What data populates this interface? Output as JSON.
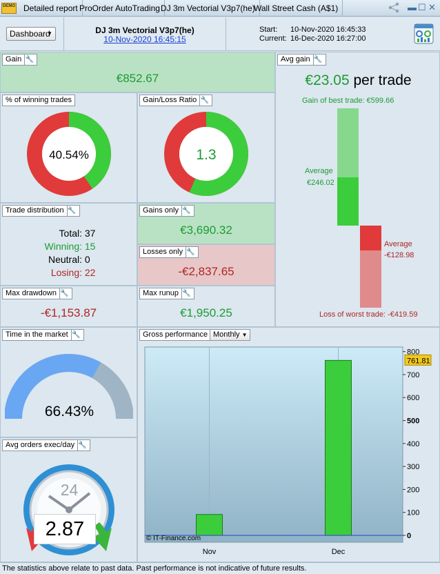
{
  "titlebar": {
    "logo_text": "DEMO",
    "tabs": [
      "Detailed report",
      "ProOrder AutoTrading",
      "DJ 3m Vectorial V3p7(he)",
      "Wall Street Cash (A$1)"
    ]
  },
  "header": {
    "dashboard_label": "Dashboard",
    "strategy_name": "DJ 3m Vectorial V3p7(he)",
    "strategy_date": "10-Nov-2020 16:45:15",
    "start_label": "Start:",
    "start_value": "10-Nov-2020 16:45:33",
    "current_label": "Current:",
    "current_value": "16-Dec-2020 16:27:00"
  },
  "gain": {
    "title": "Gain",
    "value": "€852.67"
  },
  "winning": {
    "title": "% of winning trades",
    "value": "40.54%",
    "fraction": 0.4054
  },
  "gainloss": {
    "title": "Gain/Loss Ratio",
    "value": "1.3",
    "fraction": 0.565
  },
  "avg_gain": {
    "title": "Avg gain",
    "value": "€23.05",
    "suffix": "per trade",
    "best_label": "Gain of best trade: €599.66",
    "avg_pos_label": "Average",
    "avg_pos_value": "€246.02",
    "avg_neg_label": "Average",
    "avg_neg_value": "-€128.98",
    "worst_label": "Loss of worst trade: -€419.59"
  },
  "distribution": {
    "title": "Trade distribution",
    "total_label": "Total:",
    "total": "37",
    "winning_label": "Winning:",
    "winning": "15",
    "neutral_label": "Neutral:",
    "neutral": "0",
    "losing_label": "Losing:",
    "losing": "22"
  },
  "gains_only": {
    "title": "Gains only",
    "value": "€3,690.32"
  },
  "losses_only": {
    "title": "Losses only",
    "value": "-€2,837.65"
  },
  "max_drawdown": {
    "title": "Max drawdown",
    "value": "-€1,153.87"
  },
  "max_runup": {
    "title": "Max runup",
    "value": "€1,950.25"
  },
  "time_market": {
    "title": "Time in the market",
    "value": "66.43%",
    "fraction": 0.6643
  },
  "avg_orders": {
    "title": "Avg orders exec/day",
    "value": "2.87",
    "clock_label": "24"
  },
  "gross": {
    "title": "Gross performance",
    "period": "Monthly",
    "copyright": "© IT-Finance.com",
    "last_value_badge": "761.81"
  },
  "chart_data": {
    "type": "bar",
    "categories": [
      "Nov",
      "Dec"
    ],
    "values": [
      91,
      761.81
    ],
    "ylim": [
      -30,
      820
    ],
    "yticks": [
      0,
      100,
      200,
      300,
      400,
      500,
      600,
      700,
      800
    ],
    "ytick_labels": [
      "0",
      "100",
      "200",
      "300",
      "400",
      "500",
      "600",
      "700",
      "800"
    ]
  },
  "footer": {
    "text": "The statistics above relate to past data. Past performance is not indicative of future results."
  },
  "colors": {
    "green": "#3ccd3c",
    "red": "#e03a3a",
    "panel": "#dce7ef"
  }
}
